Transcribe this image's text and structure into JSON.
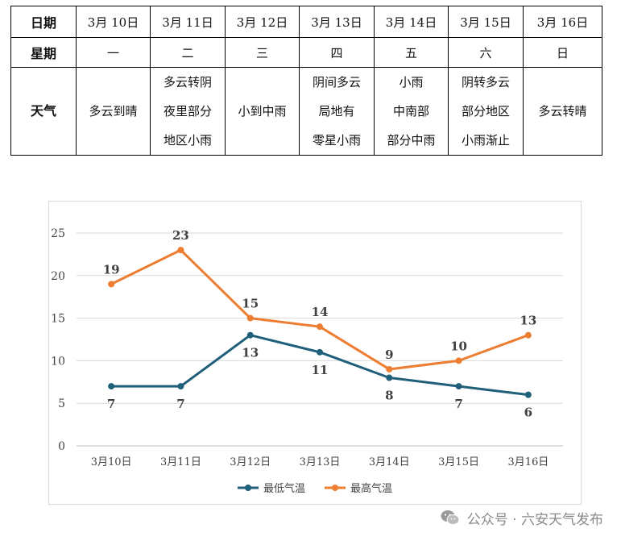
{
  "table": {
    "row_headers": {
      "date": "日期",
      "weekday": "星期",
      "weather": "天气"
    },
    "columns": [
      {
        "date": "3月 10日",
        "weekday": "一",
        "weather": [
          "多云到晴"
        ]
      },
      {
        "date": "3月 11日",
        "weekday": "二",
        "weather": [
          "多云转阴",
          "夜里部分",
          "地区小雨"
        ]
      },
      {
        "date": "3月 12日",
        "weekday": "三",
        "weather": [
          "小到中雨"
        ]
      },
      {
        "date": "3月 13日",
        "weekday": "四",
        "weather": [
          "阴间多云",
          "局地有",
          "零星小雨"
        ]
      },
      {
        "date": "3月 14日",
        "weekday": "五",
        "weather": [
          "小雨",
          "中南部",
          "部分中雨"
        ]
      },
      {
        "date": "3月 15日",
        "weekday": "六",
        "weather": [
          "阴转多云",
          "部分地区",
          "小雨渐止"
        ]
      },
      {
        "date": "3月 16日",
        "weekday": "日",
        "weather": [
          "多云转晴"
        ]
      }
    ]
  },
  "chart_data": {
    "type": "line",
    "categories": [
      "3月10日",
      "3月11日",
      "3月12日",
      "3月13日",
      "3月14日",
      "3月15日",
      "3月16日"
    ],
    "series": [
      {
        "name": "最低气温",
        "values": [
          7,
          7,
          13,
          11,
          8,
          7,
          6
        ],
        "color": "#1f5f7a",
        "label_position": "below"
      },
      {
        "name": "最高气温",
        "values": [
          19,
          23,
          15,
          14,
          9,
          10,
          13
        ],
        "color": "#ed7d31",
        "label_position": "above"
      }
    ],
    "ylim": [
      0,
      25
    ],
    "yticks": [
      0,
      5,
      10,
      15,
      20,
      25
    ],
    "grid": true,
    "legend": "bottom-center",
    "title": "",
    "xlabel": "",
    "ylabel": ""
  },
  "watermark": {
    "text": "公众号 · 六安天气发布",
    "icon": "wechat-icon"
  }
}
